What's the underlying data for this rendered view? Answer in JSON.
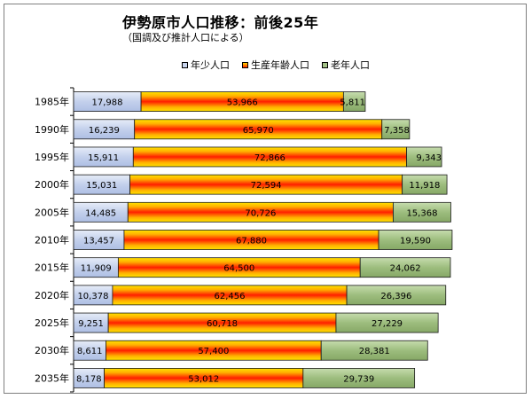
{
  "title": "伊勢原市人口推移：前後25年",
  "subtitle": "（国調及び推計人口による）",
  "colors": {
    "young": "#c9d5ee",
    "working_top": "#ffd800",
    "working_mid": "#ff2a00",
    "working_edge": "#e51a00",
    "elderly": "#a4c287"
  },
  "chart_data": {
    "type": "bar",
    "orientation": "horizontal",
    "stacked": true,
    "categories": [
      "1985年",
      "1990年",
      "1995年",
      "2000年",
      "2005年",
      "2010年",
      "2015年",
      "2020年",
      "2025年",
      "2030年",
      "2035年"
    ],
    "series": [
      {
        "name": "年少人口",
        "values": [
          17988,
          16239,
          15911,
          15031,
          14485,
          13457,
          11909,
          10378,
          9251,
          8611,
          8178
        ]
      },
      {
        "name": "生産年齢人口",
        "values": [
          53966,
          65970,
          72866,
          72594,
          70726,
          67880,
          64500,
          62456,
          60718,
          57400,
          53012
        ]
      },
      {
        "name": "老年人口",
        "values": [
          5811,
          7358,
          9343,
          11918,
          15368,
          19590,
          24062,
          26396,
          27229,
          28381,
          29739
        ]
      }
    ],
    "data_labels": [
      [
        "17,988",
        "53,966",
        "5,811"
      ],
      [
        "16,239",
        "65,970",
        "7,358"
      ],
      [
        "15,911",
        "72,866",
        "9,343"
      ],
      [
        "15,031",
        "72,594",
        "11,918"
      ],
      [
        "14,485",
        "70,726",
        "15,368"
      ],
      [
        "13,457",
        "67,880",
        "19,590"
      ],
      [
        "11,909",
        "64,500",
        "24,062"
      ],
      [
        "10,378",
        "62,456",
        "26,396"
      ],
      [
        "9,251",
        "60,718",
        "27,229"
      ],
      [
        "8,611",
        "57,400",
        "28,381"
      ],
      [
        "8,178",
        "53,012",
        "29,739"
      ]
    ],
    "legend": {
      "position": "top"
    },
    "grid": false
  }
}
